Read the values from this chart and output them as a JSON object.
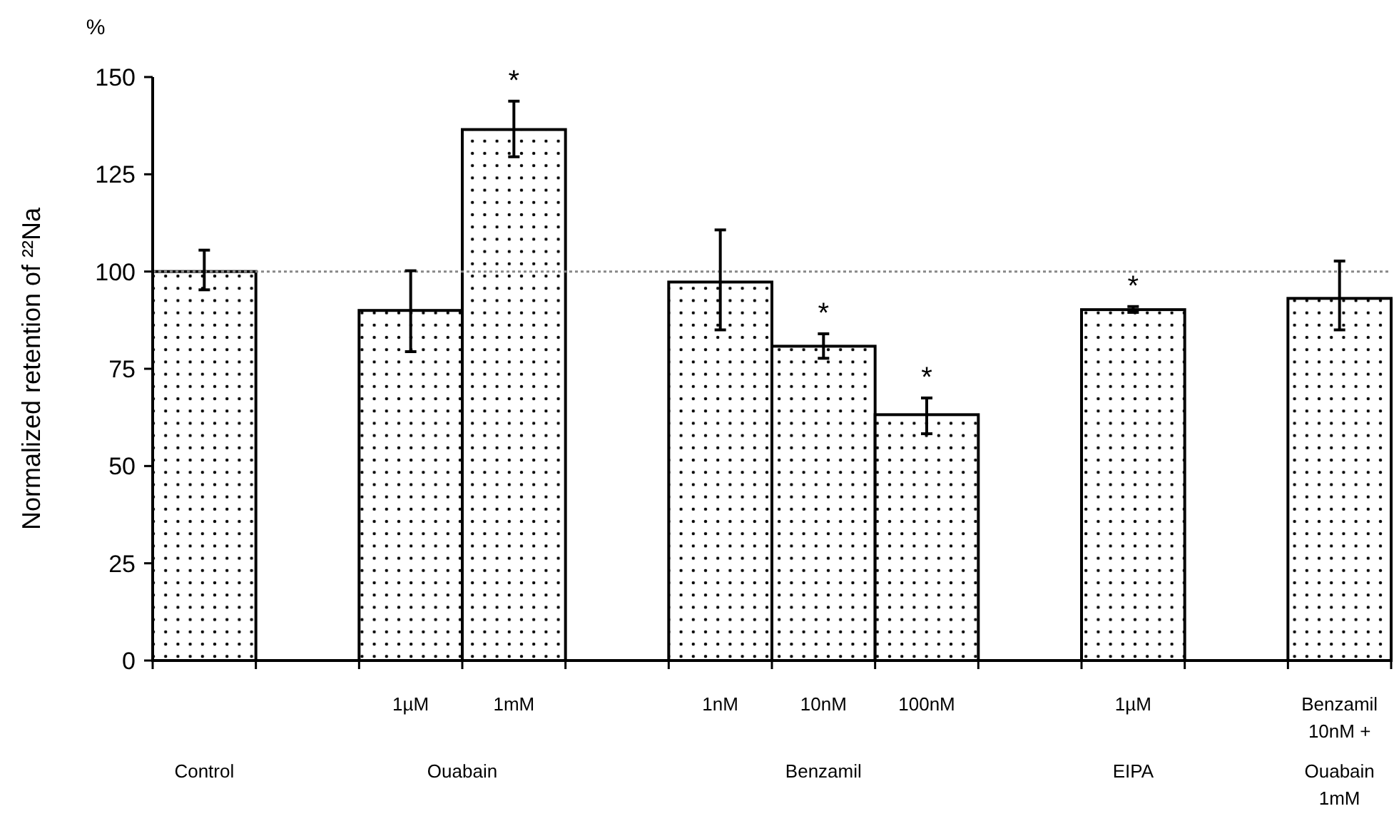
{
  "chart_data": {
    "type": "bar",
    "ylabel": "Normalized retention of ²²Na",
    "categories": [
      null,
      null,
      "1µM",
      "1mM",
      null,
      "1nM",
      "10nM",
      "100nM",
      null,
      "1µM",
      null,
      "Benzamil 10nM +"
    ],
    "values": [
      100,
      null,
      90,
      136.5,
      null,
      97.3,
      80.8,
      63.2,
      null,
      90.2,
      null,
      93.1
    ],
    "errors": [
      [
        95.3,
        105.5
      ],
      null,
      [
        79.4,
        100.2
      ],
      [
        129.5,
        143.8
      ],
      null,
      [
        85,
        110.7
      ],
      [
        77.7,
        84
      ],
      [
        58.3,
        67.5
      ],
      null,
      [
        89.5,
        91
      ],
      null,
      [
        85,
        102.7
      ]
    ],
    "value_labels": [
      null,
      null,
      null,
      "*",
      null,
      null,
      "*",
      "*",
      null,
      "*",
      null,
      null
    ],
    "color": "#000000",
    "ylim": [
      0,
      150
    ],
    "yticks": [
      0,
      25,
      50,
      75,
      100,
      125,
      150
    ],
    "ref_lines": [
      {
        "axis": "y",
        "value": 100,
        "color": "#888888",
        "line_style": "dotted"
      }
    ],
    "annotations": [
      "Control",
      "Ouabain",
      "Benzamil",
      "EIPA",
      "Ouabain 1mM",
      "%"
    ],
    "grid": false
  }
}
